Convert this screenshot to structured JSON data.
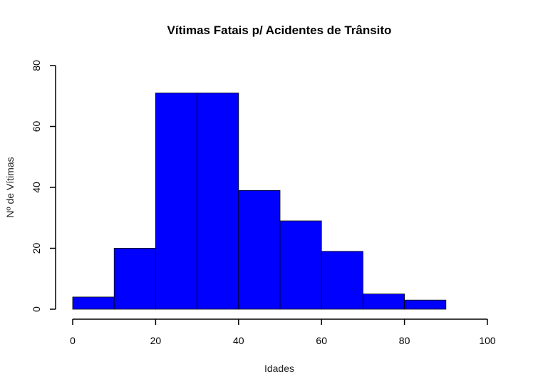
{
  "chart_data": {
    "type": "bar",
    "title": "Vítimas Fatais p/ Acidentes de Trânsito",
    "xlabel": "Idades",
    "ylabel": "Nº de Vítimas",
    "bins": [
      {
        "from": 0,
        "to": 10,
        "value": 4
      },
      {
        "from": 10,
        "to": 20,
        "value": 20
      },
      {
        "from": 20,
        "to": 30,
        "value": 71
      },
      {
        "from": 30,
        "to": 40,
        "value": 71
      },
      {
        "from": 40,
        "to": 50,
        "value": 39
      },
      {
        "from": 50,
        "to": 60,
        "value": 29
      },
      {
        "from": 60,
        "to": 70,
        "value": 19
      },
      {
        "from": 70,
        "to": 80,
        "value": 5
      },
      {
        "from": 80,
        "to": 90,
        "value": 3
      }
    ],
    "xlim": [
      0,
      100
    ],
    "ylim": [
      0,
      80
    ],
    "xticks": [
      0,
      20,
      40,
      60,
      80,
      100
    ],
    "yticks": [
      0,
      20,
      40,
      60,
      80
    ],
    "bar_color": "#0000ff",
    "border_color": "#000000",
    "grid": false,
    "legend": "none"
  }
}
